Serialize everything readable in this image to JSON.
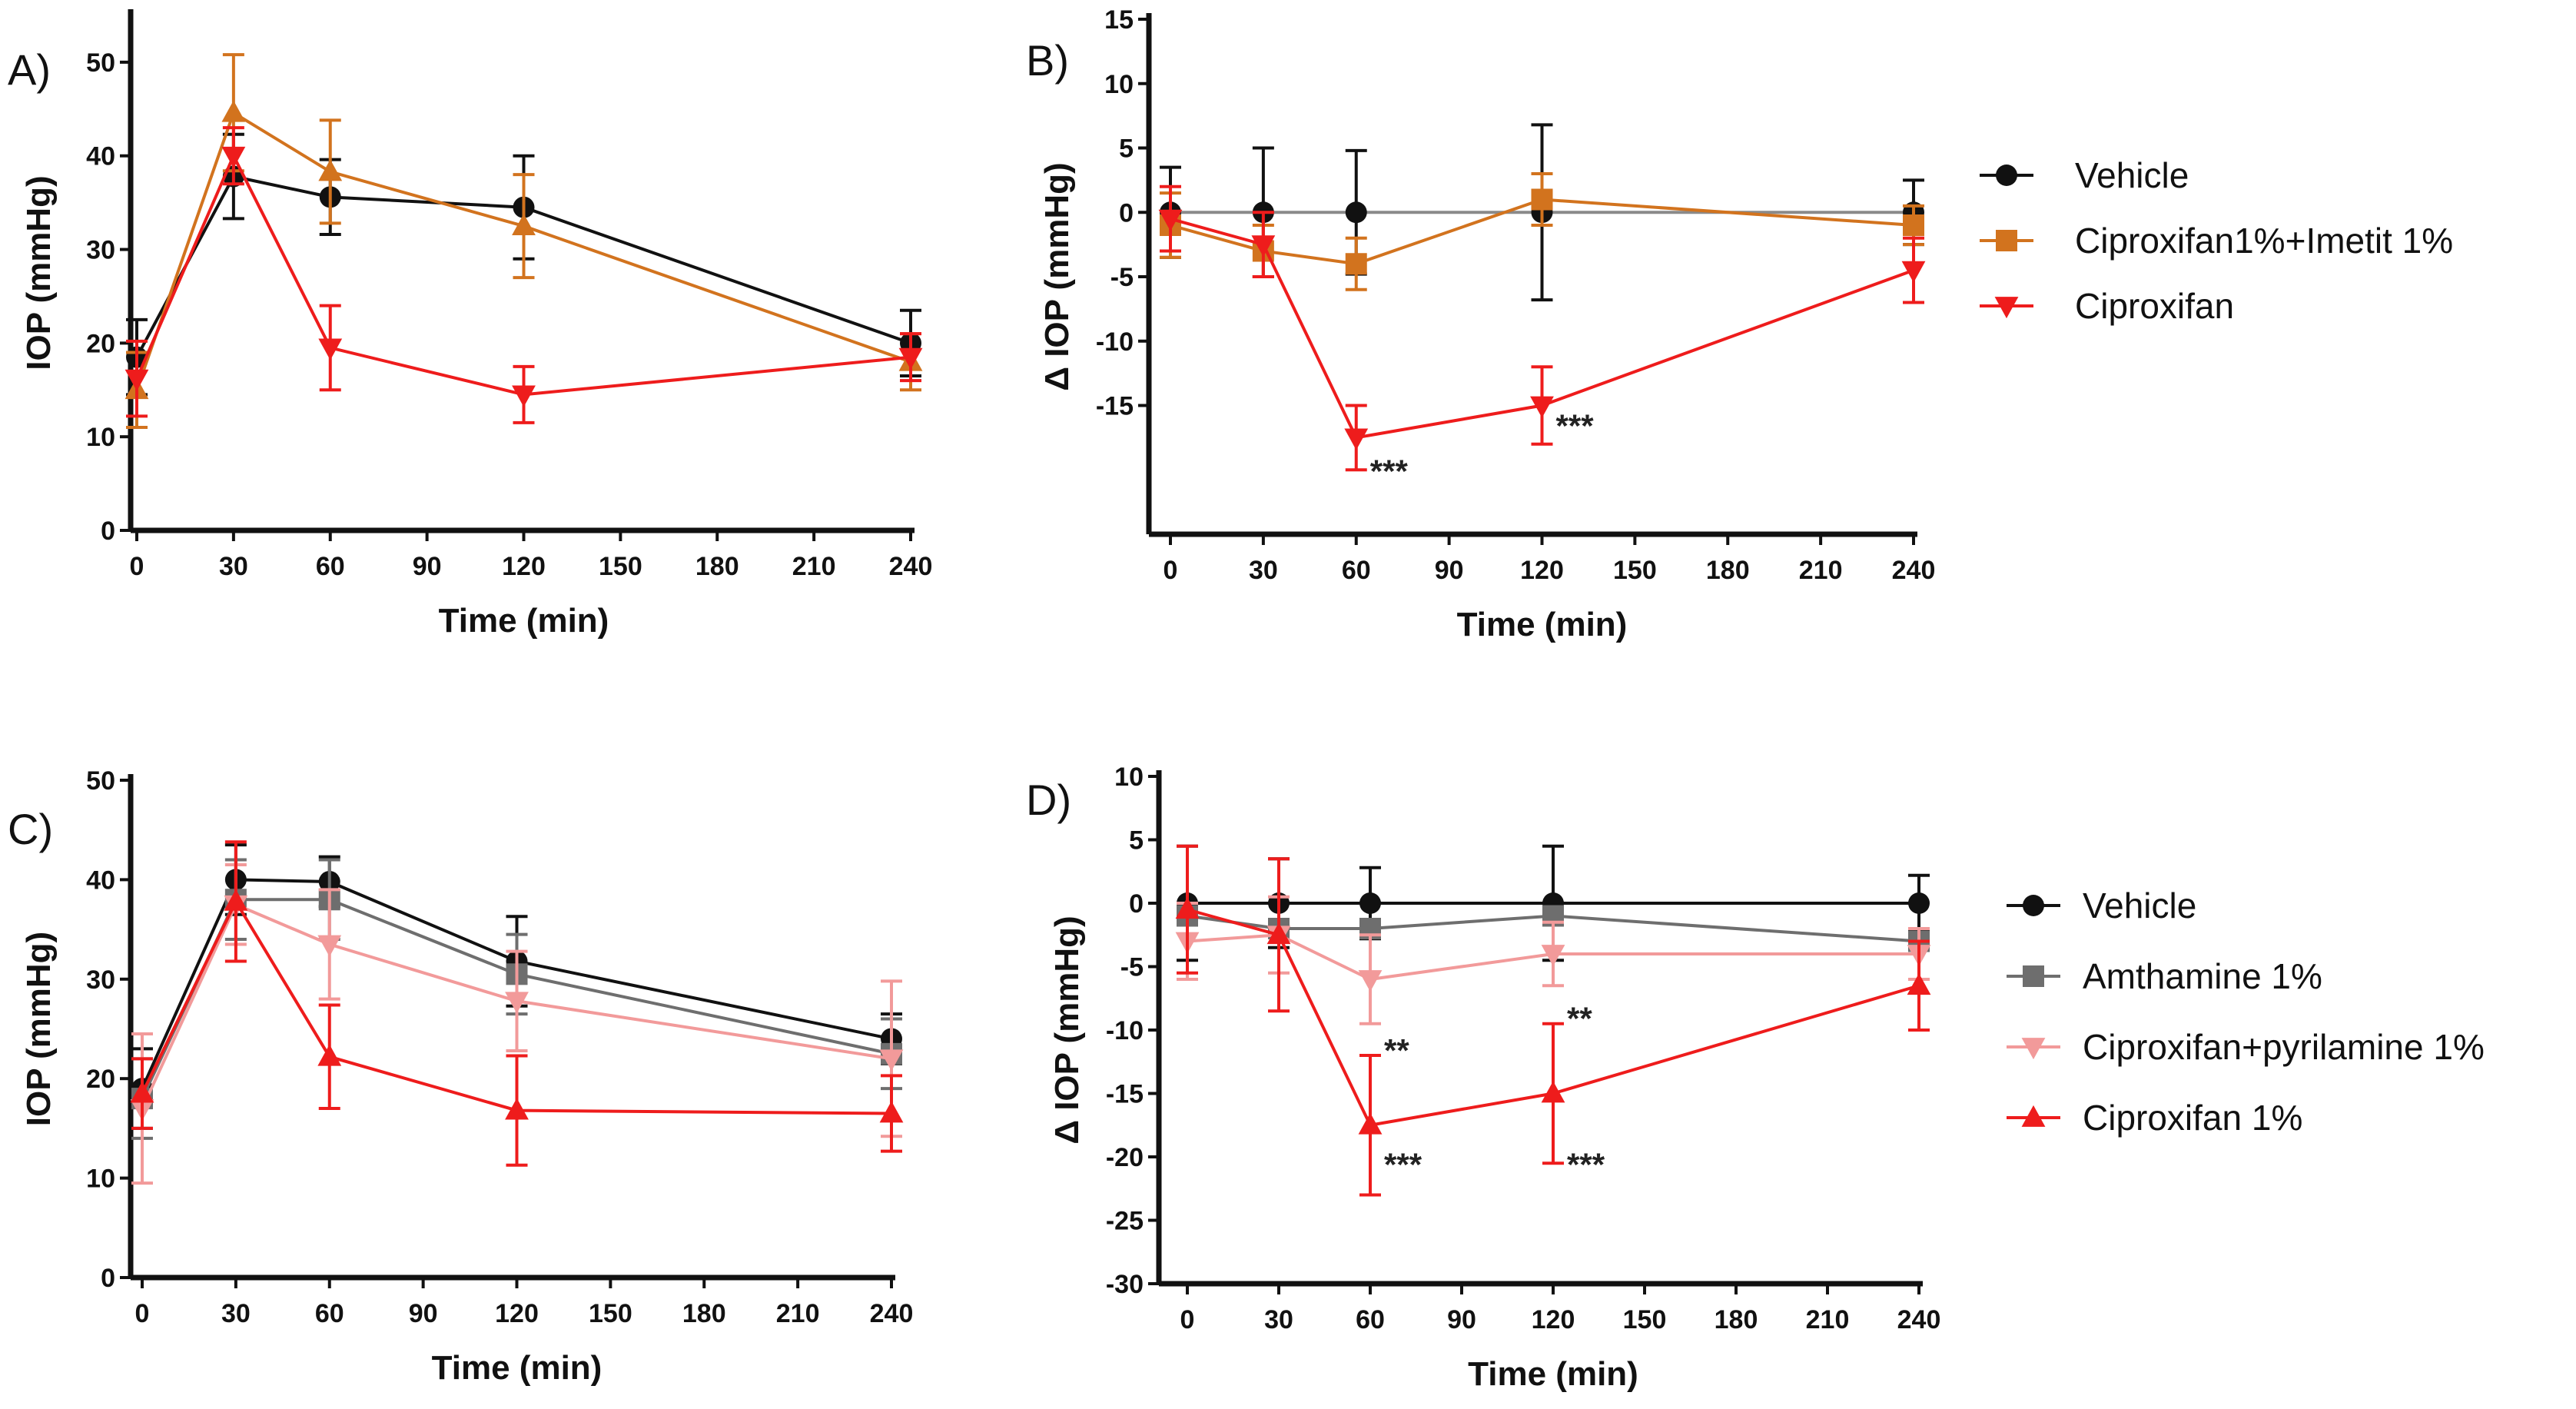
{
  "colors": {
    "black": "#111111",
    "orange": "#D2731E",
    "red": "#EE1C1C",
    "gray": "#6E6E6E",
    "pink": "#F29A9A",
    "vehicle_line_B": "#8A8A8A"
  },
  "chart_data": [
    {
      "panel": "A)",
      "type": "line",
      "xlabel": "Time (min)",
      "ylabel": "IOP (mmHg)",
      "xlim": [
        0,
        240
      ],
      "ylim": [
        0,
        55
      ],
      "xticks": [
        0,
        30,
        60,
        90,
        120,
        150,
        180,
        210,
        240
      ],
      "yticks": [
        0,
        10,
        20,
        30,
        40,
        50
      ],
      "series": [
        {
          "name": "Vehicle",
          "color": "black",
          "marker": "circle",
          "x": [
            0,
            30,
            60,
            120,
            240
          ],
          "y": [
            18.5,
            37.8,
            35.6,
            34.5,
            20
          ],
          "err": [
            4,
            4.5,
            4,
            5.5,
            3.5
          ]
        },
        {
          "name": "Ciproxifan1%+Imetit 1%",
          "color": "orange",
          "marker": "triangle-up",
          "x": [
            0,
            30,
            60,
            120,
            240
          ],
          "y": [
            15,
            44.6,
            38.3,
            32.5,
            18
          ],
          "err": [
            4,
            6.2,
            5.5,
            5.5,
            3
          ]
        },
        {
          "name": "Ciproxifan",
          "color": "red",
          "marker": "triangle-down",
          "x": [
            0,
            30,
            60,
            120,
            240
          ],
          "y": [
            16.2,
            40,
            19.5,
            14.5,
            18.5
          ],
          "err": [
            4,
            3,
            4.5,
            3,
            2.5
          ]
        }
      ],
      "annotations": []
    },
    {
      "panel": "B)",
      "type": "line",
      "xlabel": "Time (min)",
      "ylabel": "Δ IOP (mmHg)",
      "xlim": [
        0,
        240
      ],
      "ylim": [
        -25,
        15
      ],
      "xticks": [
        0,
        30,
        60,
        90,
        120,
        150,
        180,
        210,
        240
      ],
      "yticks": [
        -15,
        -10,
        -5,
        0,
        5,
        10,
        15
      ],
      "series": [
        {
          "name": "Vehicle",
          "color": "black",
          "marker": "circle",
          "x": [
            0,
            30,
            60,
            120,
            240
          ],
          "y": [
            0,
            0,
            0,
            0,
            0
          ],
          "err": [
            3.5,
            5,
            4.8,
            6.8,
            2.5
          ],
          "line_color": "vehicle_line_B"
        },
        {
          "name": "Ciproxifan1%+Imetit 1%",
          "color": "orange",
          "marker": "square",
          "x": [
            0,
            30,
            60,
            120,
            240
          ],
          "y": [
            -1,
            -3,
            -4,
            1,
            -1
          ],
          "err": [
            2.5,
            2,
            2,
            2,
            1.5
          ]
        },
        {
          "name": "Ciproxifan",
          "color": "red",
          "marker": "triangle-down",
          "x": [
            0,
            30,
            60,
            120,
            240
          ],
          "y": [
            -0.5,
            -2.5,
            -17.5,
            -15,
            -4.5
          ],
          "err": [
            2.5,
            2.5,
            2.5,
            3,
            2.5
          ]
        }
      ],
      "annotations": [
        {
          "text": "***",
          "x": 60,
          "y": -20
        },
        {
          "text": "***",
          "x": 120,
          "y": -16.5
        }
      ]
    },
    {
      "panel": "C)",
      "type": "line",
      "xlabel": "Time (min)",
      "ylabel": "IOP (mmHg)",
      "xlim": [
        0,
        240
      ],
      "ylim": [
        0,
        50
      ],
      "xticks": [
        0,
        30,
        60,
        90,
        120,
        150,
        180,
        210,
        240
      ],
      "yticks": [
        0,
        10,
        20,
        30,
        40,
        50
      ],
      "series": [
        {
          "name": "Vehicle",
          "color": "black",
          "marker": "circle",
          "x": [
            0,
            30,
            60,
            120,
            240
          ],
          "y": [
            19,
            40,
            39.8,
            31.8,
            24
          ],
          "err": [
            4,
            3.5,
            2.5,
            4.5,
            2.5
          ]
        },
        {
          "name": "Amthamine 1%",
          "color": "gray",
          "marker": "square",
          "x": [
            0,
            30,
            60,
            120,
            240
          ],
          "y": [
            18,
            38,
            38,
            30.5,
            22.5
          ],
          "err": [
            4,
            4,
            4,
            4,
            3.5
          ]
        },
        {
          "name": "Ciproxifan+pyrilamine 1%",
          "color": "pink",
          "marker": "triangle-down",
          "x": [
            0,
            30,
            60,
            120,
            240
          ],
          "y": [
            17,
            37.5,
            33.5,
            27.8,
            22
          ],
          "err": [
            7.5,
            4,
            5.5,
            5,
            7.8
          ]
        },
        {
          "name": "Ciproxifan 1%",
          "color": "red",
          "marker": "triangle-up",
          "x": [
            0,
            30,
            60,
            120,
            240
          ],
          "y": [
            18.5,
            37.8,
            22.2,
            16.8,
            16.5
          ],
          "err": [
            3.5,
            6,
            5.2,
            5.5,
            3.8
          ]
        }
      ],
      "annotations": []
    },
    {
      "panel": "D)",
      "type": "line",
      "xlabel": "Time (min)",
      "ylabel": "Δ IOP (mmHg)",
      "xlim": [
        0,
        240
      ],
      "ylim": [
        -30,
        10
      ],
      "xticks": [
        0,
        30,
        60,
        90,
        120,
        150,
        180,
        210,
        240
      ],
      "yticks": [
        -30,
        -25,
        -20,
        -15,
        -10,
        -5,
        0,
        5,
        10
      ],
      "series": [
        {
          "name": "Vehicle",
          "color": "black",
          "marker": "circle",
          "x": [
            0,
            30,
            60,
            120,
            240
          ],
          "y": [
            0,
            0,
            0,
            0,
            0
          ],
          "err": [
            4.5,
            3.5,
            2.8,
            4.5,
            2.2
          ]
        },
        {
          "name": "Amthamine 1%",
          "color": "gray",
          "marker": "square",
          "x": [
            0,
            30,
            60,
            120,
            240
          ],
          "y": [
            -1,
            -2,
            -2,
            -1,
            -3
          ]
        },
        {
          "name": "Ciproxifan+pyrilamine 1%",
          "color": "pink",
          "marker": "triangle-down",
          "x": [
            0,
            30,
            60,
            120,
            240
          ],
          "y": [
            -3,
            -2.5,
            -6,
            -4,
            -4
          ],
          "err": [
            3,
            3,
            3.5,
            2.5,
            2
          ]
        },
        {
          "name": "Ciproxifan 1%",
          "color": "red",
          "marker": "triangle-up",
          "x": [
            0,
            30,
            60,
            120,
            240
          ],
          "y": [
            -0.5,
            -2.5,
            -17.5,
            -15,
            -6.5
          ],
          "err": [
            5,
            6,
            5.5,
            5.5,
            3.5
          ]
        }
      ],
      "annotations": [
        {
          "text": "**",
          "x": 60,
          "y": -11.5
        },
        {
          "text": "***",
          "x": 60,
          "y": -20.5
        },
        {
          "text": "**",
          "x": 120,
          "y": -9
        },
        {
          "text": "***",
          "x": 120,
          "y": -20.5
        }
      ]
    }
  ],
  "legends": [
    {
      "id": "legend-top",
      "items": [
        {
          "label": "Vehicle",
          "color": "black",
          "marker": "circle"
        },
        {
          "label": "Ciproxifan1%+Imetit 1%",
          "color": "orange",
          "marker": "square"
        },
        {
          "label": "Ciproxifan",
          "color": "red",
          "marker": "triangle-down"
        }
      ]
    },
    {
      "id": "legend-bottom",
      "items": [
        {
          "label": "Vehicle",
          "color": "black",
          "marker": "circle"
        },
        {
          "label": "Amthamine 1%",
          "color": "gray",
          "marker": "square"
        },
        {
          "label": "Ciproxifan+pyrilamine 1%",
          "color": "pink",
          "marker": "triangle-down"
        },
        {
          "label": "Ciproxifan 1%",
          "color": "red",
          "marker": "triangle-up"
        }
      ]
    }
  ]
}
